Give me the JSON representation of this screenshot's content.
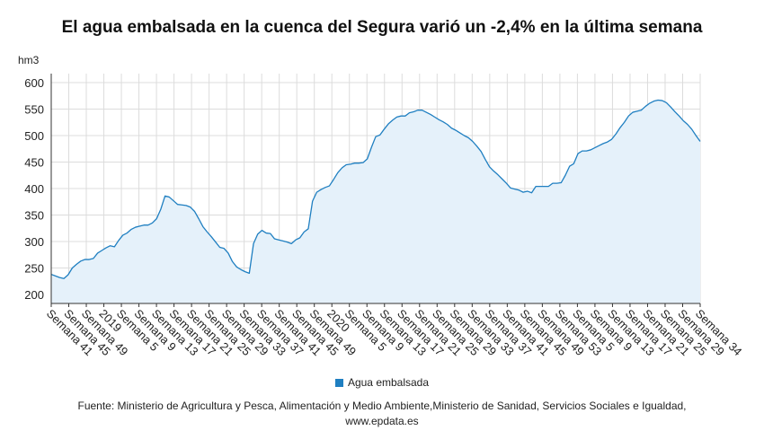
{
  "colors": {
    "line": "#1f7fc1",
    "fill": "#e5f1fa",
    "grid": "#dcdcdc",
    "axis": "#333333",
    "legend_swatch": "#1f7fc1"
  },
  "chart_data": {
    "type": "area",
    "title": "El agua embalsada en la cuenca del Segura varió un -2,4% en la última semana",
    "ylabel": "hm3",
    "ylim": [
      183,
      617
    ],
    "yticks": [
      200,
      250,
      300,
      350,
      400,
      450,
      500,
      550,
      600
    ],
    "grid": "both",
    "legend_position": "bottom",
    "x_tick_labels": [
      "Semana 41",
      "Semana 45",
      "Semana 49",
      "2019",
      "Semana 5",
      "Semana 9",
      "Semana 13",
      "Semana 17",
      "Semana 21",
      "Semana 25",
      "Semana 29",
      "Semana 33",
      "Semana 37",
      "Semana 41",
      "Semana 45",
      "Semana 49",
      "2020",
      "Semana 5",
      "Semana 9",
      "Semana 13",
      "Semana 17",
      "Semana 21",
      "Semana 25",
      "Semana 29",
      "Semana 33",
      "Semana 37",
      "Semana 41",
      "Semana 45",
      "Semana 49",
      "Semana 53",
      "Semana 5",
      "Semana 9",
      "Semana 13",
      "Semana 17",
      "Semana 21",
      "Semana 25",
      "Semana 29",
      "Semana 34"
    ],
    "series": [
      {
        "name": "Agua embalsada",
        "values": [
          238,
          235,
          232,
          230,
          237,
          250,
          257,
          263,
          266,
          266,
          268,
          278,
          283,
          288,
          292,
          290,
          302,
          312,
          316,
          323,
          327,
          329,
          331,
          331,
          335,
          343,
          361,
          386,
          384,
          377,
          370,
          369,
          368,
          365,
          357,
          343,
          328,
          318,
          309,
          299,
          289,
          287,
          278,
          262,
          252,
          247,
          243,
          240,
          296,
          314,
          321,
          316,
          315,
          305,
          303,
          301,
          299,
          296,
          303,
          307,
          318,
          324,
          376,
          393,
          398,
          402,
          405,
          417,
          430,
          439,
          445,
          446,
          448,
          448,
          449,
          456,
          478,
          498,
          501,
          512,
          522,
          529,
          535,
          537,
          537,
          543,
          545,
          548,
          548,
          544,
          540,
          535,
          530,
          526,
          521,
          514,
          510,
          505,
          500,
          496,
          489,
          480,
          470,
          455,
          441,
          433,
          426,
          418,
          410,
          401,
          399,
          397,
          393,
          395,
          392,
          404,
          404,
          404,
          404,
          410,
          410,
          411,
          425,
          442,
          447,
          466,
          471,
          471,
          473,
          477,
          481,
          485,
          488,
          493,
          503,
          515,
          525,
          537,
          544,
          546,
          548,
          555,
          561,
          565,
          567,
          566,
          562,
          554,
          545,
          537,
          528,
          521,
          512,
          500,
          489
        ]
      }
    ]
  },
  "legend": {
    "label": "Agua embalsada"
  },
  "source": {
    "line1": "Fuente: Ministerio de Agricultura y Pesca, Alimentación y Medio Ambiente,Ministerio de Sanidad, Servicios Sociales e Igualdad,",
    "line2": "www.epdata.es"
  }
}
